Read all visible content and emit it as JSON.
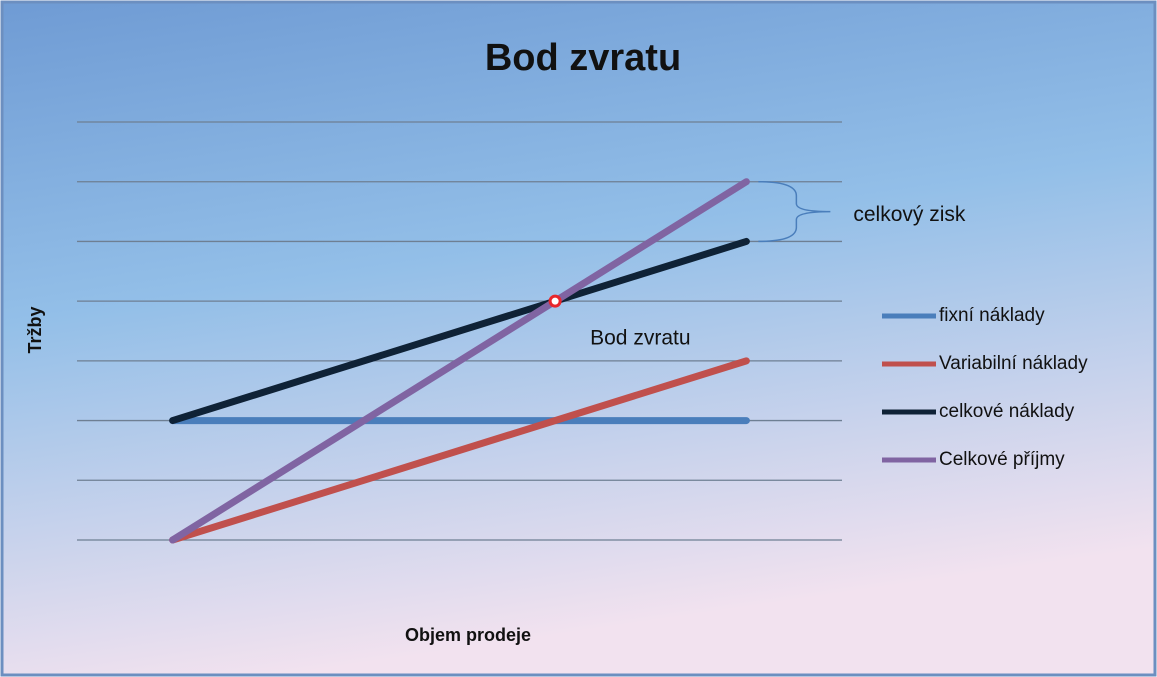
{
  "chart_data": {
    "type": "line",
    "title": "Bod zvratu",
    "x_label": "Objem prodeje",
    "y_label": "Tržby",
    "xlim": [
      -0.5,
      3.5
    ],
    "ylim": [
      0,
      7
    ],
    "yticks": [
      0,
      1,
      2,
      3,
      4,
      5,
      6,
      7
    ],
    "tick_labels": false,
    "grid": true,
    "legend": "right",
    "series": [
      {
        "name": "fixní náklady",
        "color": "#4a7ebb",
        "x": [
          0,
          3
        ],
        "values": [
          2,
          2
        ]
      },
      {
        "name": "Variabilní náklady",
        "color": "#c0504d",
        "x": [
          0,
          3
        ],
        "values": [
          0,
          3
        ]
      },
      {
        "name": "celkové náklady",
        "color": "#0f2236",
        "x": [
          0,
          3
        ],
        "values": [
          2,
          5
        ]
      },
      {
        "name": "Celkové příjmy",
        "color": "#8064a2",
        "x": [
          0,
          3
        ],
        "values": [
          0,
          6
        ]
      }
    ],
    "annotations": [
      {
        "text": "Bod zvratu",
        "x": 2,
        "y": 4,
        "color": "#e8262b"
      },
      {
        "text": "celkový zisk",
        "x": 3,
        "y_from": 5,
        "y_to": 6,
        "color": "#4a7ebb"
      }
    ]
  }
}
